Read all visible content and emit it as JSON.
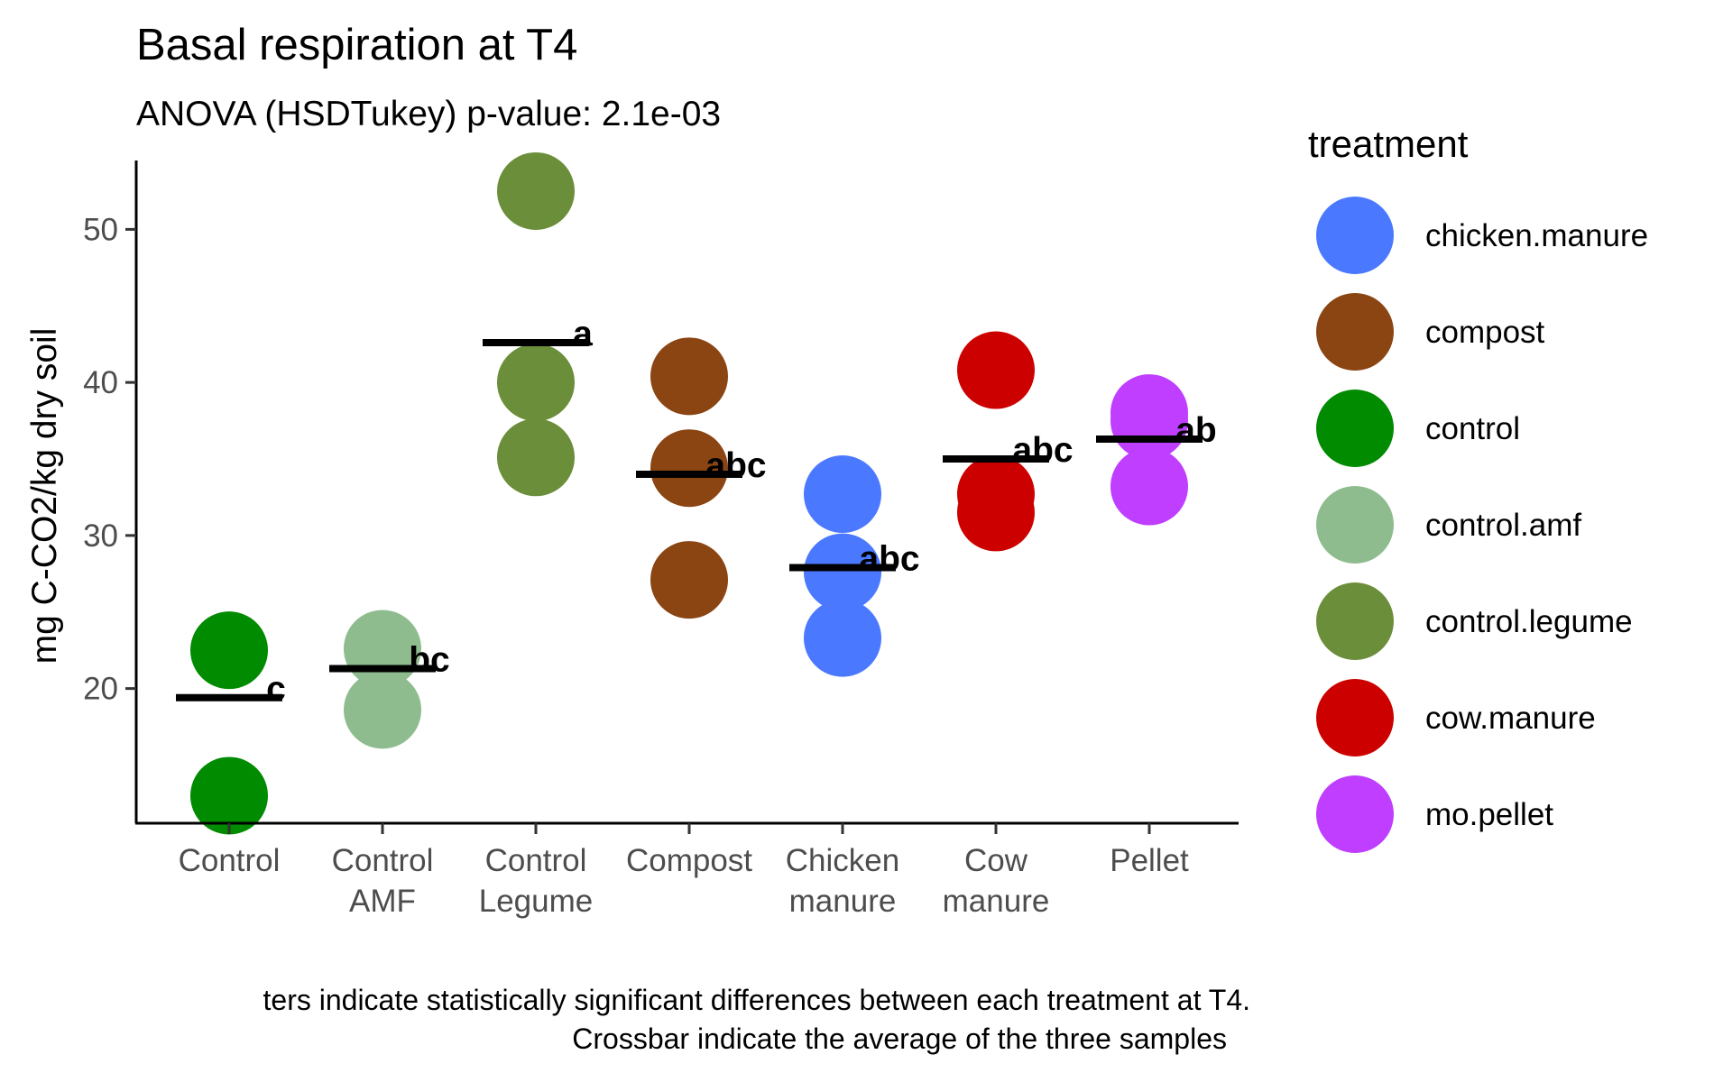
{
  "chart_data": {
    "type": "scatter",
    "title": "Basal respiration at T4",
    "subtitle": "ANOVA (HSDTukey) p-value: 2.1e-03",
    "xlabel": "",
    "ylabel": "mg C-CO2/kg dry soil",
    "ylim": [
      11.2,
      54.5
    ],
    "yticks": [
      20,
      30,
      40,
      50
    ],
    "grid": false,
    "legend_position": "right",
    "legend_title": "treatment",
    "legend": [
      {
        "name": "chicken.manure",
        "color": "#4a78ff"
      },
      {
        "name": "compost",
        "color": "#8b4513"
      },
      {
        "name": "control",
        "color": "#008b00"
      },
      {
        "name": "control.amf",
        "color": "#8fbc8f"
      },
      {
        "name": "control.legume",
        "color": "#6b8e3a"
      },
      {
        "name": "cow.manure",
        "color": "#cd0000"
      },
      {
        "name": "mo.pellet",
        "color": "#bf3eff"
      }
    ],
    "categories": [
      {
        "lines": [
          "Control"
        ],
        "treatment": "control",
        "values": [
          22.5,
          13.0
        ],
        "mean": 19.4,
        "letter": "c"
      },
      {
        "lines": [
          "Control",
          "AMF"
        ],
        "treatment": "control.amf",
        "values": [
          22.6,
          18.6
        ],
        "mean": 21.3,
        "letter": "bc"
      },
      {
        "lines": [
          "Control",
          "Legume"
        ],
        "treatment": "control.legume",
        "values": [
          52.5,
          40.0,
          35.1
        ],
        "mean": 42.6,
        "letter": "a"
      },
      {
        "lines": [
          "Compost"
        ],
        "treatment": "compost",
        "values": [
          40.4,
          34.4,
          27.1
        ],
        "mean": 34.0,
        "letter": "abc"
      },
      {
        "lines": [
          "Chicken",
          "manure"
        ],
        "treatment": "chicken.manure",
        "values": [
          32.7,
          27.6,
          23.3
        ],
        "mean": 27.9,
        "letter": "abc"
      },
      {
        "lines": [
          "Cow",
          "manure"
        ],
        "treatment": "cow.manure",
        "values": [
          40.8,
          32.7,
          31.5
        ],
        "mean": 35.0,
        "letter": "abc"
      },
      {
        "lines": [
          "Pellet"
        ],
        "treatment": "mo.pellet",
        "values": [
          38.0,
          37.5,
          33.2
        ],
        "mean": 36.3,
        "letter": "ab"
      }
    ],
    "caption_lines": [
      "ters indicate statistically significant differences between each treatment at T4.",
      "Crossbar indicate the average of the three samples"
    ]
  }
}
